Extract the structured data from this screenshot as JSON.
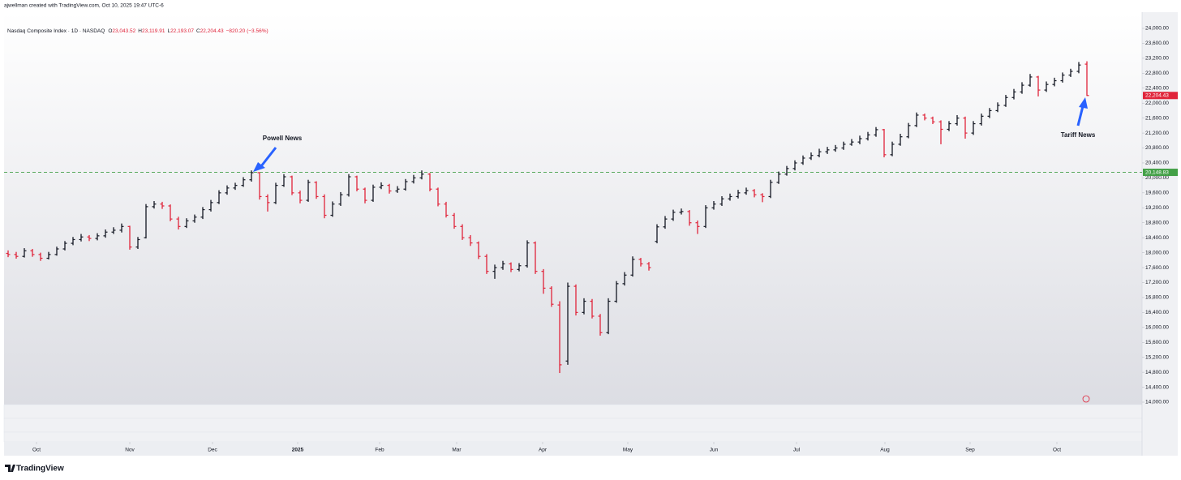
{
  "credit": "ajwellman created with TradingView.com, Oct 10, 2025 19:47 UTC-6",
  "brand": "TradingView",
  "chart_data": {
    "type": "ohlc",
    "title": "Nasdaq Composite Index · 1D · NASDAQ",
    "ohlc_legend": [
      {
        "key": "O",
        "value": "23,043.52"
      },
      {
        "key": "H",
        "value": "23,119.91"
      },
      {
        "key": "L",
        "value": "22,193.07"
      },
      {
        "key": "C",
        "value": "22,204.43"
      }
    ],
    "change": "−820.20 (−3.56%)",
    "annotations": [
      "Powell News",
      "Tariff News"
    ],
    "up_color": "#131722",
    "down_color": "#e0243a",
    "hline": {
      "value": 20148.83,
      "label": "20,148.83",
      "color": "#43a047"
    },
    "last_price_label": "22,204.43",
    "xlim": [
      -0.5,
      139.8
    ],
    "xticks": [
      {
        "value": 3.5,
        "label": "Oct"
      },
      {
        "value": 15,
        "label": "Nov"
      },
      {
        "value": 25.2,
        "label": "Dec"
      },
      {
        "value": 35.7,
        "label": "2025"
      },
      {
        "value": 45.8,
        "label": "Feb"
      },
      {
        "value": 55.3,
        "label": "Mar"
      },
      {
        "value": 65.9,
        "label": "Apr"
      },
      {
        "value": 76.4,
        "label": "May"
      },
      {
        "value": 87,
        "label": "Jun"
      },
      {
        "value": 97.2,
        "label": "Jul"
      },
      {
        "value": 108.1,
        "label": "Aug"
      },
      {
        "value": 118.6,
        "label": "Sep"
      },
      {
        "value": 129.3,
        "label": "Oct"
      }
    ],
    "ylim": [
      13935,
      24434
    ],
    "yticks": [
      {
        "value": 14000,
        "label": "14,000.00"
      },
      {
        "value": 14400,
        "label": "14,400.00"
      },
      {
        "value": 14800,
        "label": "14,800.00"
      },
      {
        "value": 15200,
        "label": "15,200.00"
      },
      {
        "value": 15600,
        "label": "15,600.00"
      },
      {
        "value": 16000,
        "label": "16,000.00"
      },
      {
        "value": 16400,
        "label": "16,400.00"
      },
      {
        "value": 16800,
        "label": "16,800.00"
      },
      {
        "value": 17200,
        "label": "17,200.00"
      },
      {
        "value": 17600,
        "label": "17,600.00"
      },
      {
        "value": 18000,
        "label": "18,000.00"
      },
      {
        "value": 18400,
        "label": "18,400.00"
      },
      {
        "value": 18800,
        "label": "18,800.00"
      },
      {
        "value": 19200,
        "label": "19,200.00"
      },
      {
        "value": 19600,
        "label": "19,600.00"
      },
      {
        "value": 20000,
        "label": "20,000.00"
      },
      {
        "value": 20400,
        "label": "20,400.00"
      },
      {
        "value": 20800,
        "label": "20,800.00"
      },
      {
        "value": 21200,
        "label": "21,200.00"
      },
      {
        "value": 21600,
        "label": "21,600.00"
      },
      {
        "value": 22000,
        "label": "22,000.00"
      },
      {
        "value": 22400,
        "label": "22,400.00"
      },
      {
        "value": 22800,
        "label": "22,800.00"
      },
      {
        "value": 23200,
        "label": "23,200.00"
      },
      {
        "value": 23600,
        "label": "23,600.00"
      },
      {
        "value": 24000,
        "label": "24,000.00"
      }
    ],
    "ohlc": [
      [
        17980,
        18060,
        17880,
        17950
      ],
      [
        17950,
        18020,
        17840,
        17900
      ],
      [
        17900,
        18120,
        17870,
        18050
      ],
      [
        18050,
        18100,
        17890,
        17950
      ],
      [
        17950,
        18000,
        17780,
        17850
      ],
      [
        17850,
        18020,
        17820,
        17950
      ],
      [
        17950,
        18160,
        17920,
        18100
      ],
      [
        18100,
        18310,
        18060,
        18250
      ],
      [
        18250,
        18420,
        18200,
        18350
      ],
      [
        18350,
        18500,
        18300,
        18420
      ],
      [
        18420,
        18470,
        18310,
        18380
      ],
      [
        18380,
        18520,
        18330,
        18450
      ],
      [
        18450,
        18620,
        18400,
        18550
      ],
      [
        18550,
        18680,
        18500,
        18600
      ],
      [
        18600,
        18780,
        18540,
        18700
      ],
      [
        18700,
        18720,
        18080,
        18150
      ],
      [
        18150,
        18420,
        18100,
        18350
      ],
      [
        18400,
        19300,
        18380,
        19230
      ],
      [
        19230,
        19380,
        19180,
        19300
      ],
      [
        19300,
        19360,
        19170,
        19250
      ],
      [
        19250,
        19290,
        18840,
        18900
      ],
      [
        18900,
        18960,
        18620,
        18700
      ],
      [
        18700,
        18920,
        18660,
        18850
      ],
      [
        18850,
        19020,
        18800,
        18950
      ],
      [
        18950,
        19220,
        18900,
        19150
      ],
      [
        19150,
        19410,
        19100,
        19340
      ],
      [
        19340,
        19670,
        19300,
        19600
      ],
      [
        19600,
        19800,
        19550,
        19730
      ],
      [
        19730,
        19870,
        19680,
        19800
      ],
      [
        19800,
        20020,
        19760,
        19950
      ],
      [
        19950,
        20200,
        19900,
        20140
      ],
      [
        20140,
        20150,
        19420,
        19500
      ],
      [
        19500,
        19560,
        19100,
        19340
      ],
      [
        19340,
        19870,
        19300,
        19800
      ],
      [
        19800,
        20100,
        19760,
        20030
      ],
      [
        20030,
        20060,
        19540,
        19600
      ],
      [
        19600,
        19660,
        19320,
        19400
      ],
      [
        19400,
        19950,
        19360,
        19880
      ],
      [
        19880,
        19910,
        19440,
        19500
      ],
      [
        19500,
        19560,
        18920,
        19000
      ],
      [
        19000,
        19370,
        18960,
        19300
      ],
      [
        19300,
        19620,
        19250,
        19550
      ],
      [
        19550,
        20100,
        19500,
        20030
      ],
      [
        20030,
        20060,
        19640,
        19700
      ],
      [
        19700,
        19740,
        19320,
        19400
      ],
      [
        19400,
        19820,
        19360,
        19750
      ],
      [
        19750,
        19880,
        19700,
        19800
      ],
      [
        19800,
        19840,
        19580,
        19650
      ],
      [
        19650,
        19780,
        19600,
        19700
      ],
      [
        19700,
        19970,
        19660,
        19900
      ],
      [
        19900,
        20080,
        19850,
        20000
      ],
      [
        20000,
        20200,
        19960,
        20100
      ],
      [
        20100,
        20130,
        19640,
        19700
      ],
      [
        19700,
        19740,
        19240,
        19300
      ],
      [
        19300,
        19360,
        18940,
        19000
      ],
      [
        19000,
        19060,
        18640,
        18700
      ],
      [
        18700,
        18760,
        18340,
        18400
      ],
      [
        18400,
        18470,
        18180,
        18260
      ],
      [
        18260,
        18300,
        17830,
        17900
      ],
      [
        17900,
        17960,
        17430,
        17500
      ],
      [
        17500,
        17680,
        17300,
        17600
      ],
      [
        17600,
        17780,
        17540,
        17700
      ],
      [
        17700,
        17740,
        17480,
        17550
      ],
      [
        17550,
        17720,
        17500,
        17650
      ],
      [
        17650,
        18330,
        17600,
        18260
      ],
      [
        18260,
        18300,
        17430,
        17500
      ],
      [
        17500,
        17560,
        16900,
        17050
      ],
      [
        17050,
        17100,
        16550,
        16620
      ],
      [
        16600,
        16700,
        14780,
        15000
      ],
      [
        15100,
        17200,
        15000,
        17100
      ],
      [
        17100,
        17150,
        16320,
        16400
      ],
      [
        16400,
        16780,
        16350,
        16700
      ],
      [
        16700,
        16760,
        16240,
        16300
      ],
      [
        16300,
        16360,
        15780,
        15860
      ],
      [
        15860,
        16780,
        15820,
        16700
      ],
      [
        16700,
        17240,
        16660,
        17170
      ],
      [
        17170,
        17480,
        17120,
        17400
      ],
      [
        17400,
        17900,
        17360,
        17820
      ],
      [
        17820,
        17860,
        17630,
        17700
      ],
      [
        17700,
        17750,
        17520,
        17600
      ],
      [
        18300,
        18760,
        18250,
        18690
      ],
      [
        18690,
        18980,
        18640,
        18900
      ],
      [
        18900,
        19150,
        18850,
        19080
      ],
      [
        19080,
        19180,
        19020,
        19100
      ],
      [
        19100,
        19140,
        18720,
        18800
      ],
      [
        18800,
        18860,
        18500,
        18700
      ],
      [
        18700,
        19270,
        18660,
        19200
      ],
      [
        19200,
        19380,
        19150,
        19300
      ],
      [
        19300,
        19510,
        19250,
        19440
      ],
      [
        19440,
        19580,
        19390,
        19500
      ],
      [
        19500,
        19680,
        19450,
        19600
      ],
      [
        19600,
        19740,
        19550,
        19660
      ],
      [
        19660,
        19700,
        19480,
        19550
      ],
      [
        19550,
        19590,
        19350,
        19500
      ],
      [
        19500,
        19950,
        19460,
        19880
      ],
      [
        19880,
        20170,
        19840,
        20100
      ],
      [
        20100,
        20320,
        20060,
        20250
      ],
      [
        20250,
        20470,
        20200,
        20400
      ],
      [
        20400,
        20600,
        20350,
        20530
      ],
      [
        20530,
        20680,
        20480,
        20600
      ],
      [
        20600,
        20780,
        20550,
        20700
      ],
      [
        20700,
        20830,
        20640,
        20750
      ],
      [
        20750,
        20880,
        20700,
        20800
      ],
      [
        20800,
        20970,
        20750,
        20900
      ],
      [
        20900,
        21040,
        20860,
        20960
      ],
      [
        20960,
        21130,
        20900,
        21050
      ],
      [
        21050,
        21230,
        21000,
        21150
      ],
      [
        21150,
        21360,
        21100,
        21290
      ],
      [
        21290,
        21310,
        20550,
        20620
      ],
      [
        20620,
        20970,
        20580,
        20900
      ],
      [
        20900,
        21180,
        20860,
        21100
      ],
      [
        21100,
        21470,
        21060,
        21400
      ],
      [
        21400,
        21750,
        21360,
        21680
      ],
      [
        21680,
        21720,
        21540,
        21600
      ],
      [
        21600,
        21640,
        21440,
        21500
      ],
      [
        21500,
        21540,
        20900,
        21300
      ],
      [
        21300,
        21520,
        21250,
        21450
      ],
      [
        21450,
        21680,
        21400,
        21600
      ],
      [
        21600,
        21640,
        21050,
        21200
      ],
      [
        21200,
        21520,
        21150,
        21450
      ],
      [
        21450,
        21720,
        21400,
        21650
      ],
      [
        21650,
        21870,
        21600,
        21800
      ],
      [
        21800,
        22020,
        21760,
        21940
      ],
      [
        21940,
        22220,
        21900,
        22150
      ],
      [
        22150,
        22380,
        22100,
        22300
      ],
      [
        22300,
        22560,
        22250,
        22480
      ],
      [
        22480,
        22780,
        22440,
        22700
      ],
      [
        22700,
        22730,
        22180,
        22350
      ],
      [
        22350,
        22580,
        22300,
        22500
      ],
      [
        22500,
        22680,
        22450,
        22600
      ],
      [
        22600,
        22820,
        22550,
        22750
      ],
      [
        22750,
        22920,
        22700,
        22850
      ],
      [
        22850,
        23100,
        22800,
        23020
      ],
      [
        23043.52,
        23119.91,
        22193.07,
        22204.43
      ]
    ]
  }
}
